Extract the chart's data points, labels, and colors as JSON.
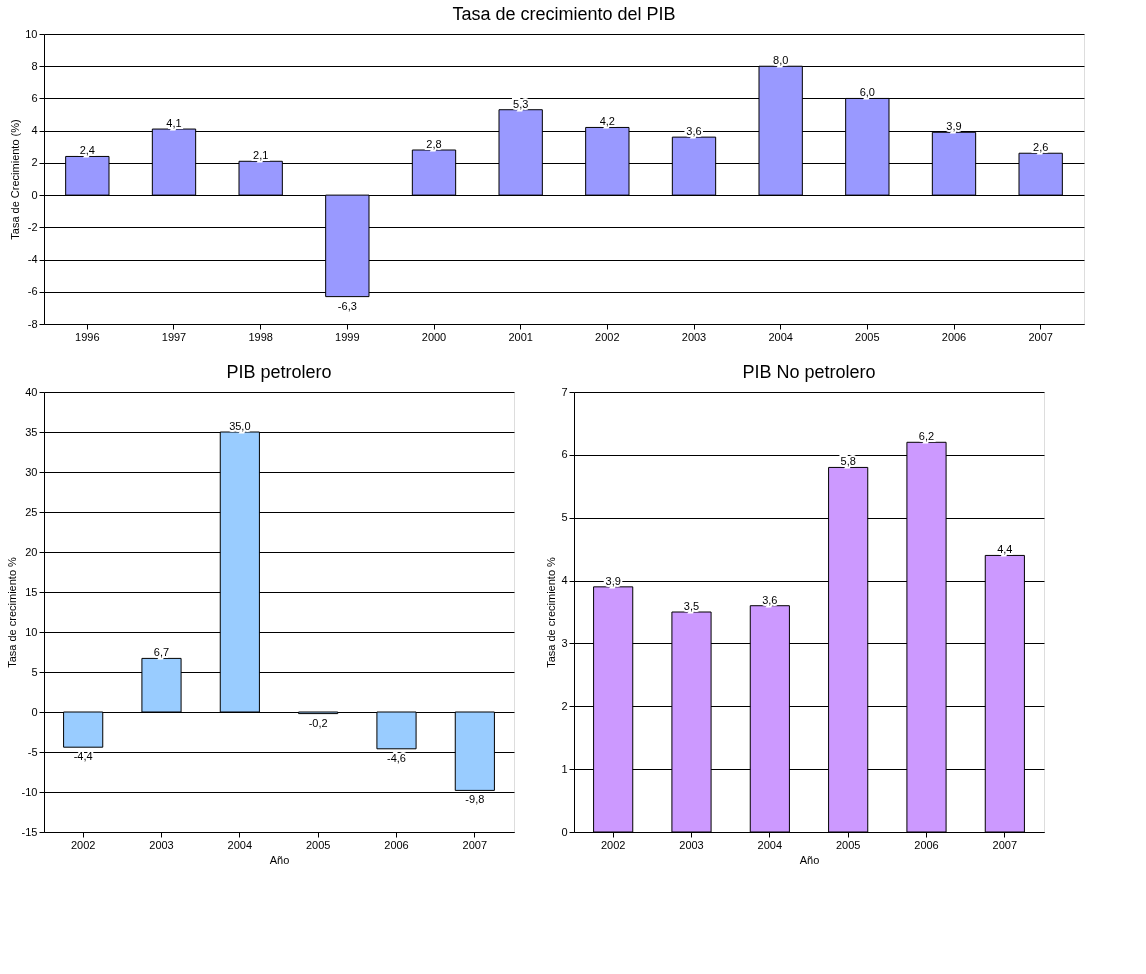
{
  "chart_data": [
    {
      "type": "bar",
      "title": "Tasa de crecimiento del PIB",
      "ylabel": "Tasa de Crecimiento (%)",
      "categories": [
        "1996",
        "1997",
        "1998",
        "1999",
        "2000",
        "2001",
        "2002",
        "2003",
        "2004",
        "2005",
        "2006",
        "2007"
      ],
      "values": [
        2.4,
        4.1,
        2.1,
        -6.3,
        2.8,
        5.3,
        4.2,
        3.6,
        8.0,
        6.0,
        3.9,
        2.6
      ],
      "value_labels": [
        "2,4",
        "4,1",
        "2,1",
        "-6,3",
        "2,8",
        "5,3",
        "4,2",
        "3,6",
        "8,0",
        "6,0",
        "3,9",
        "2,6"
      ],
      "color": "#9999ff",
      "ylim": [
        -8,
        10
      ],
      "yticks": [
        -8,
        -6,
        -4,
        -2,
        0,
        2,
        4,
        6,
        8,
        10
      ],
      "grid": "y"
    },
    {
      "type": "bar",
      "title": "PIB petrolero",
      "ylabel": "Tasa de crecimiento %",
      "xlabel": "Año",
      "categories": [
        "2002",
        "2003",
        "2004",
        "2005",
        "2006",
        "2007"
      ],
      "values": [
        -4.4,
        6.7,
        35.0,
        -0.2,
        -4.6,
        -9.8
      ],
      "value_labels": [
        "-4,4",
        "6,7",
        "35,0",
        "-0,2",
        "-4,6",
        "-9,8"
      ],
      "color": "#99ccff",
      "ylim": [
        -15,
        40
      ],
      "yticks": [
        -15,
        -10,
        -5,
        0,
        5,
        10,
        15,
        20,
        25,
        30,
        35,
        40
      ],
      "grid": "y"
    },
    {
      "type": "bar",
      "title": "PIB No petrolero",
      "ylabel": "Tasa de crecimiento %",
      "xlabel": "Año",
      "categories": [
        "2002",
        "2003",
        "2004",
        "2005",
        "2006",
        "2007"
      ],
      "values": [
        3.9,
        3.5,
        3.6,
        5.8,
        6.2,
        4.4
      ],
      "value_labels": [
        "3,9",
        "3,5",
        "3,6",
        "5,8",
        "6,2",
        "4,4"
      ],
      "color": "#cc99ff",
      "ylim": [
        0,
        7
      ],
      "yticks": [
        0,
        1,
        2,
        3,
        4,
        5,
        6,
        7
      ],
      "grid": "y"
    }
  ]
}
